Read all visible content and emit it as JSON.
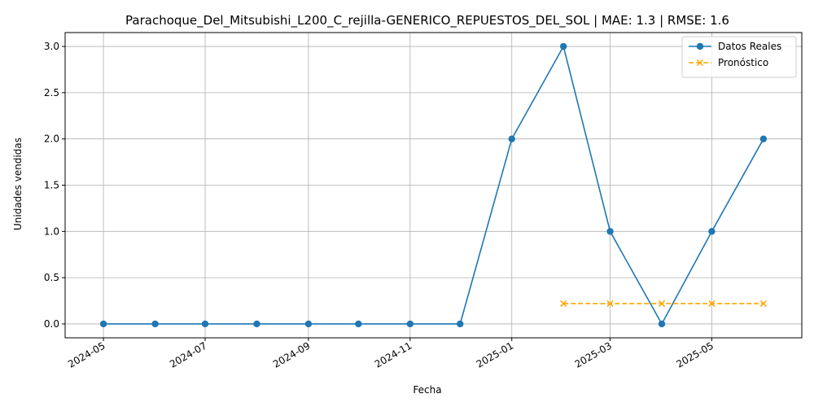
{
  "chart_data": {
    "type": "line",
    "title": "Parachoque_Del_Mitsubishi_L200_C_rejilla-GENERICO_REPUESTOS_DEL_SOL | MAE: 1.3 | RMSE: 1.6",
    "xlabel": "Fecha",
    "ylabel": "Unidades vendidas",
    "xlim": [
      "2024-04-08",
      "2025-06-24"
    ],
    "ylim": [
      -0.15,
      3.15
    ],
    "grid": true,
    "legend_position": "top-right",
    "x_ticks": [
      "2024-05",
      "2024-07",
      "2024-09",
      "2024-11",
      "2025-01",
      "2025-03",
      "2025-05"
    ],
    "x_tick_dates": [
      "2024-05-01",
      "2024-07-01",
      "2024-09-01",
      "2024-11-01",
      "2025-01-01",
      "2025-03-01",
      "2025-05-01"
    ],
    "y_ticks": [
      0.0,
      0.5,
      1.0,
      1.5,
      2.0,
      2.5,
      3.0
    ],
    "y_tick_labels": [
      "0.0",
      "0.5",
      "1.0",
      "1.5",
      "2.0",
      "2.5",
      "3.0"
    ],
    "series": [
      {
        "name": "Datos Reales",
        "color": "#1f77b4",
        "linestyle": "solid",
        "marker": "circle",
        "x": [
          "2024-05-01",
          "2024-06-01",
          "2024-07-01",
          "2024-08-01",
          "2024-09-01",
          "2024-10-01",
          "2024-11-01",
          "2024-12-01",
          "2025-01-01",
          "2025-02-01",
          "2025-03-01",
          "2025-04-01",
          "2025-05-01",
          "2025-06-01"
        ],
        "values": [
          0,
          0,
          0,
          0,
          0,
          0,
          0,
          0,
          2,
          3,
          1,
          0,
          1,
          2
        ]
      },
      {
        "name": "Pronóstico",
        "color": "#ffa500",
        "linestyle": "dashed",
        "marker": "x",
        "x": [
          "2025-02-01",
          "2025-03-01",
          "2025-04-01",
          "2025-05-01",
          "2025-06-01"
        ],
        "values": [
          0.22,
          0.22,
          0.22,
          0.22,
          0.22
        ]
      }
    ]
  }
}
